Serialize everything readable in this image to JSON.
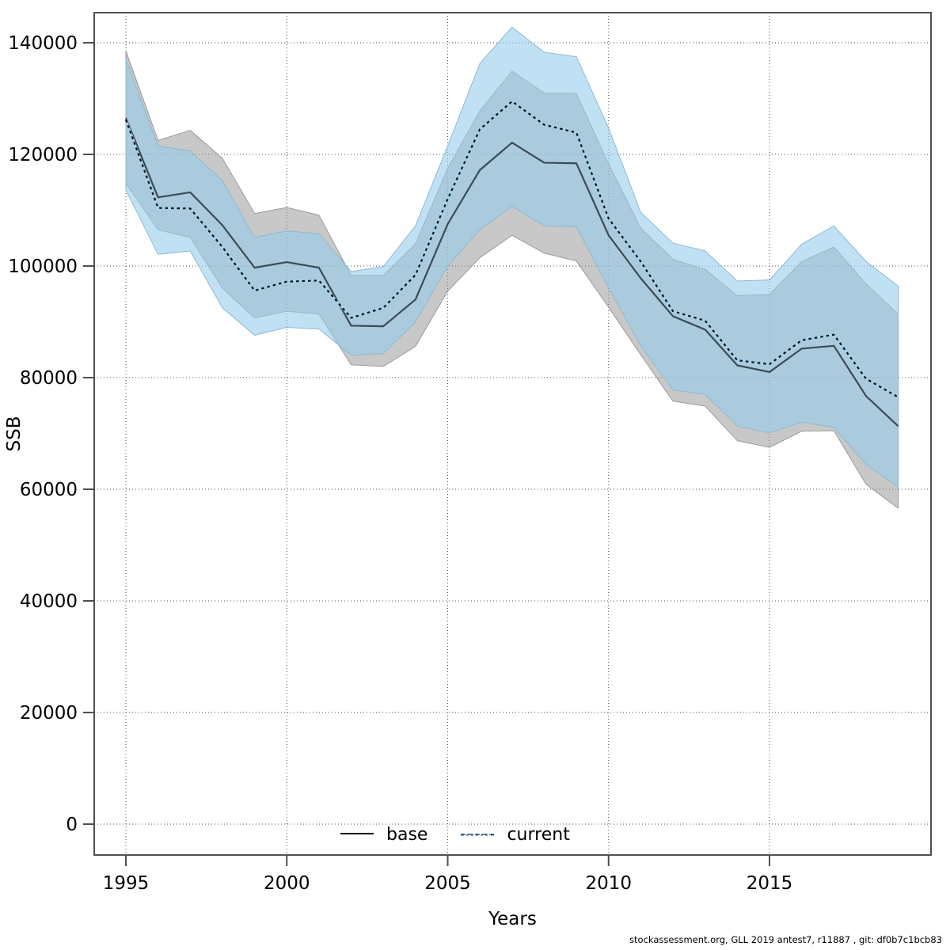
{
  "figure": {
    "xlabel": "Years",
    "ylabel": "SSB",
    "footer": "stockassessment.org, GLL 2019 antest7, r11887 , git: df0b7c1bcb83"
  },
  "legend": {
    "items": [
      {
        "label": "base"
      },
      {
        "label": "current"
      }
    ]
  },
  "chart_data": {
    "type": "line",
    "title": "",
    "xlabel": "Years",
    "ylabel": "SSB",
    "grid": "dotted",
    "legend_position": "bottom-center-inside",
    "x": [
      1995,
      1996,
      1997,
      1998,
      1999,
      2000,
      2001,
      2002,
      2003,
      2004,
      2005,
      2006,
      2007,
      2008,
      2009,
      2010,
      2011,
      2012,
      2013,
      2014,
      2015,
      2016,
      2017,
      2018,
      2019
    ],
    "x_ticks": [
      1995,
      2000,
      2005,
      2010,
      2015
    ],
    "y_ticks": [
      0,
      20000,
      40000,
      60000,
      80000,
      100000,
      120000,
      140000
    ],
    "ylim": [
      -6000,
      145500
    ],
    "xlim": [
      1994,
      2020.1
    ],
    "series": [
      {
        "name": "base",
        "line_style": "solid",
        "line_color": "#3a4b55",
        "band_color": "rgba(145,145,145,0.50)",
        "band_edge_color": "#9a9a9a",
        "values": [
          126500,
          112300,
          113200,
          107300,
          99700,
          100700,
          99700,
          89300,
          89200,
          94000,
          107500,
          117200,
          122100,
          118500,
          118400,
          105500,
          97800,
          91000,
          88600,
          82200,
          81000,
          85200,
          85700,
          76700,
          71300
        ],
        "band_lo": [
          114800,
          106500,
          105100,
          96000,
          90700,
          91900,
          91400,
          82300,
          82000,
          85600,
          95500,
          101500,
          105500,
          102300,
          100900,
          92600,
          84100,
          75800,
          74900,
          68700,
          67500,
          70400,
          70500,
          60900,
          56600
        ],
        "band_hi": [
          138500,
          122500,
          124300,
          119300,
          109400,
          110500,
          109100,
          98300,
          98300,
          104000,
          117500,
          127800,
          134900,
          131000,
          130900,
          118300,
          106800,
          101200,
          99400,
          94700,
          94900,
          100800,
          103400,
          96800,
          91400
        ]
      },
      {
        "name": "current",
        "line_style": "dotted",
        "line_color": "#111111",
        "line_underlay_color": "#9fd4ef",
        "band_color": "rgba(150,205,235,0.60)",
        "band_edge_color": "#8fb9d2",
        "values": [
          126200,
          110400,
          110300,
          103400,
          95600,
          97200,
          97400,
          90700,
          92500,
          98400,
          112000,
          124500,
          129500,
          125300,
          123900,
          108500,
          100800,
          91900,
          90200,
          83100,
          82400,
          86700,
          87700,
          79800,
          76500
        ],
        "band_lo": [
          113600,
          102100,
          102700,
          92500,
          87600,
          89000,
          88700,
          84000,
          84300,
          90000,
          100000,
          106500,
          110700,
          107200,
          107000,
          96100,
          85700,
          77800,
          77000,
          71300,
          70100,
          72000,
          71100,
          64400,
          60400
        ],
        "band_hi": [
          137000,
          121500,
          120600,
          115300,
          105100,
          106300,
          105800,
          99000,
          99900,
          107200,
          121500,
          136300,
          142800,
          138300,
          137500,
          124700,
          109600,
          104100,
          102700,
          97300,
          97500,
          103900,
          107200,
          100800,
          96400
        ]
      }
    ]
  }
}
